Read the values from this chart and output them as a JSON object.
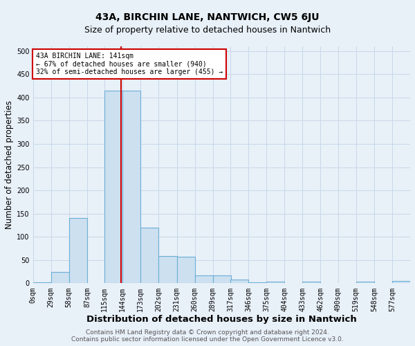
{
  "title": "43A, BIRCHIN LANE, NANTWICH, CW5 6JU",
  "subtitle": "Size of property relative to detached houses in Nantwich",
  "xlabel": "Distribution of detached houses by size in Nantwich",
  "ylabel": "Number of detached properties",
  "footer_line1": "Contains HM Land Registry data © Crown copyright and database right 2024.",
  "footer_line2": "Contains public sector information licensed under the Open Government Licence v3.0.",
  "bin_edges": [
    0,
    29,
    58,
    87,
    115,
    144,
    173,
    202,
    231,
    260,
    289,
    317,
    346,
    375,
    404,
    433,
    462,
    490,
    519,
    548,
    577
  ],
  "bin_labels": [
    "0sqm",
    "29sqm",
    "58sqm",
    "87sqm",
    "115sqm",
    "144sqm",
    "173sqm",
    "202sqm",
    "231sqm",
    "260sqm",
    "289sqm",
    "317sqm",
    "346sqm",
    "375sqm",
    "404sqm",
    "433sqm",
    "462sqm",
    "490sqm",
    "519sqm",
    "548sqm",
    "577sqm"
  ],
  "bar_heights": [
    2,
    25,
    140,
    0,
    415,
    415,
    120,
    58,
    57,
    17,
    17,
    8,
    2,
    3,
    0,
    3,
    0,
    0,
    3,
    0,
    5
  ],
  "bar_color": "#cce0f0",
  "bar_edge_color": "#6baed6",
  "property_size": 141,
  "vline_color": "#cc0000",
  "annotation_text": "43A BIRCHIN LANE: 141sqm\n← 67% of detached houses are smaller (940)\n32% of semi-detached houses are larger (455) →",
  "annotation_box_color": "#ffffff",
  "annotation_box_edge": "#cc0000",
  "ylim": [
    0,
    510
  ],
  "yticks": [
    0,
    50,
    100,
    150,
    200,
    250,
    300,
    350,
    400,
    450,
    500
  ],
  "grid_color": "#c8d8e8",
  "bg_color": "#e8f0f8",
  "plot_bg_color": "#e8f0f8",
  "title_fontsize": 10,
  "subtitle_fontsize": 9,
  "axis_label_fontsize": 8.5,
  "tick_fontsize": 7,
  "footer_fontsize": 6.5
}
